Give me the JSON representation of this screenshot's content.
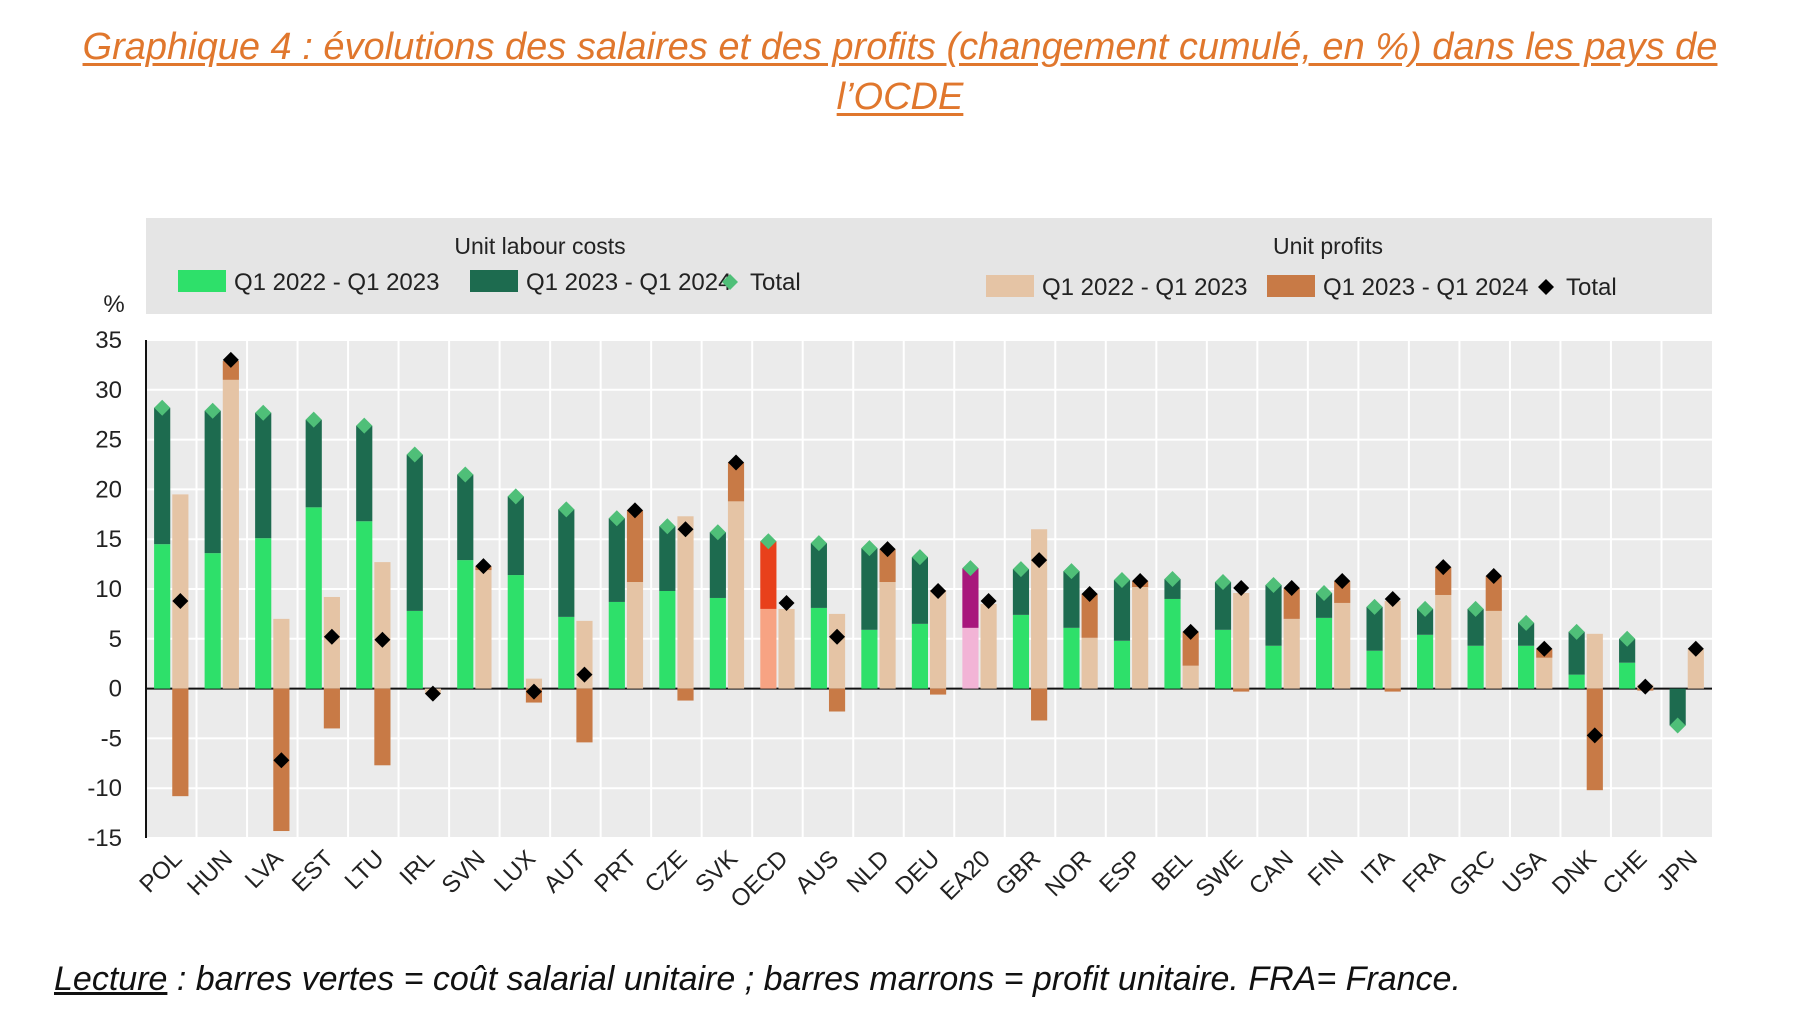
{
  "title": "Graphique 4 : évolutions des salaires et des profits (changement cumulé, en %) dans les pays de l’OCDE",
  "caption": {
    "label": "Lecture",
    "text": " : barres vertes = coût salarial unitaire ; barres marrons = profit unitaire. FRA= France."
  },
  "chart_data": {
    "type": "bar",
    "ylabel": "%",
    "ylim": [
      -15,
      35
    ],
    "yticks": [
      35,
      30,
      25,
      20,
      15,
      10,
      5,
      0,
      -5,
      -10,
      -15
    ],
    "grid": true,
    "legend": {
      "placement": "top",
      "groups": [
        {
          "title": "Unit labour costs",
          "entries": [
            {
              "label": "Q1 2022 - Q1 2023",
              "color": "#2ee06a",
              "kind": "bar"
            },
            {
              "label": "Q1 2023 - Q1 2024",
              "color": "#1d6b4f",
              "kind": "bar"
            },
            {
              "label": "Total",
              "color": "#4fbf78",
              "kind": "diamond"
            }
          ]
        },
        {
          "title": "Unit profits",
          "entries": [
            {
              "label": "Q1 2022 - Q1 2023",
              "color": "#e5c4a5",
              "kind": "bar"
            },
            {
              "label": "Q1 2023 - Q1 2024",
              "color": "#c87a46",
              "kind": "bar"
            },
            {
              "label": "Total",
              "color": "#000000",
              "kind": "diamond"
            }
          ]
        }
      ]
    },
    "categories": [
      "POL",
      "HUN",
      "LVA",
      "EST",
      "LTU",
      "IRL",
      "SVN",
      "LUX",
      "AUT",
      "PRT",
      "CZE",
      "SVK",
      "OECD",
      "AUS",
      "NLD",
      "DEU",
      "EA20",
      "GBR",
      "NOR",
      "ESP",
      "BEL",
      "SWE",
      "CAN",
      "FIN",
      "ITA",
      "FRA",
      "GRC",
      "USA",
      "DNK",
      "CHE",
      "JPN"
    ],
    "series": [
      {
        "name": "Unit labour costs Q1 2022 - Q1 2023",
        "values": [
          14.5,
          13.6,
          15.1,
          18.2,
          16.8,
          7.8,
          12.9,
          11.4,
          7.2,
          8.7,
          9.8,
          9.1,
          8.0,
          8.1,
          5.9,
          6.5,
          6.1,
          7.4,
          6.1,
          4.8,
          9.0,
          5.9,
          4.3,
          7.1,
          3.8,
          5.4,
          4.3,
          4.3,
          1.4,
          2.6,
          0
        ]
      },
      {
        "name": "Unit labour costs Q1 2023 - Q1 2024",
        "values": [
          13.7,
          14.3,
          12.6,
          8.8,
          9.6,
          15.7,
          8.6,
          7.9,
          10.8,
          8.4,
          6.5,
          6.6,
          6.8,
          6.5,
          8.2,
          6.7,
          6.0,
          4.6,
          5.7,
          6.1,
          2.0,
          4.8,
          6.1,
          2.5,
          4.4,
          2.6,
          3.7,
          2.3,
          4.3,
          2.4,
          -3.7
        ]
      },
      {
        "name": "Unit labour costs Total",
        "values": [
          28.2,
          27.9,
          27.7,
          27.0,
          26.4,
          23.5,
          21.5,
          19.3,
          18.0,
          17.1,
          16.3,
          15.7,
          14.8,
          14.6,
          14.1,
          13.2,
          12.1,
          12.0,
          11.8,
          10.9,
          11.0,
          10.7,
          10.4,
          9.6,
          8.2,
          8.0,
          8.0,
          6.6,
          5.7,
          5.0,
          -3.7
        ]
      },
      {
        "name": "Unit profits Q1 2022 - Q1 2023",
        "values": [
          19.5,
          31.0,
          7.0,
          9.2,
          12.7,
          -0.5,
          11.9,
          1.0,
          6.8,
          10.7,
          17.3,
          18.8,
          8.0,
          7.5,
          10.7,
          9.9,
          8.5,
          16.0,
          5.1,
          10.2,
          2.3,
          9.6,
          7.0,
          8.6,
          8.8,
          9.4,
          7.8,
          3.1,
          5.5,
          0.4,
          4.0
        ]
      },
      {
        "name": "Unit profits Q1 2023 - Q1 2024",
        "values": [
          -10.8,
          1.9,
          -14.3,
          -4.0,
          -7.7,
          0,
          0.4,
          -1.4,
          -5.4,
          7.2,
          -1.2,
          3.9,
          0,
          -2.3,
          3.3,
          -0.6,
          0,
          -3.2,
          4.4,
          0.6,
          3.4,
          -0.3,
          3.1,
          2.2,
          -0.3,
          2.8,
          3.5,
          0.9,
          -10.2,
          -0.2,
          0
        ]
      },
      {
        "name": "Unit profits Total",
        "values": [
          8.8,
          33.0,
          -7.2,
          5.2,
          4.9,
          -0.5,
          12.3,
          -0.3,
          1.4,
          17.9,
          16.0,
          22.7,
          8.6,
          5.2,
          14.0,
          9.8,
          8.8,
          12.9,
          9.5,
          10.8,
          5.7,
          10.1,
          10.1,
          10.8,
          9.0,
          12.2,
          11.3,
          4.0,
          -4.7,
          0.2,
          4.0
        ]
      }
    ],
    "highlight": {
      "OECD": {
        "ulc_q1": "#f7a383",
        "ulc_q2": "#e8401b"
      },
      "EA20": {
        "ulc_q1": "#f2b4d6",
        "ulc_q2": "#a8177c"
      }
    },
    "colors": {
      "panel": "#ebebeb",
      "legend_panel": "#e5e5e5",
      "ulc_q1": "#2ee06a",
      "ulc_q2": "#1d6b4f",
      "ulc_total": "#4fbf78",
      "up_q1": "#e5c4a5",
      "up_q2": "#c87a46",
      "up_total": "#000000"
    }
  }
}
